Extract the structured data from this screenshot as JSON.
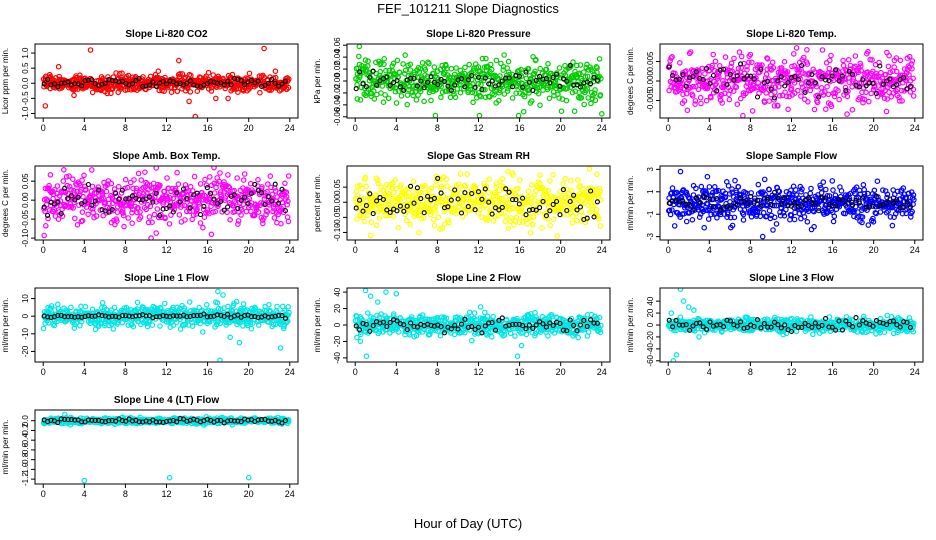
{
  "figure": {
    "title": "FEF_101211  Slope Diagnostics",
    "xlabel": "Hour of Day (UTC)"
  },
  "chart_data": [
    {
      "type": "scatter",
      "title": "Slope Li-820 CO2",
      "ylabel": "Licor ppm per min.",
      "xlim": [
        -0.8,
        24.8
      ],
      "ylim": [
        -1.15,
        1.3
      ],
      "xticks": [
        0,
        4,
        8,
        12,
        16,
        20,
        24
      ],
      "yticks": [
        -1.0,
        -0.5,
        0.0,
        0.5,
        1.0
      ],
      "ytick_labels": [
        "-1.0",
        "-0.5",
        "0.0",
        "0.5",
        "1.0"
      ],
      "spread": 0.13,
      "raw_color": "#ff0000",
      "black_amp": 0.07,
      "outliers": [
        [
          0.2,
          -0.75
        ],
        [
          1.5,
          0.55
        ],
        [
          3.0,
          -0.4
        ],
        [
          4.6,
          1.1
        ],
        [
          7.3,
          -0.3
        ],
        [
          10.0,
          -0.2
        ],
        [
          11.2,
          0.4
        ],
        [
          13.2,
          0.75
        ],
        [
          14.2,
          -0.6
        ],
        [
          14.8,
          -1.1
        ],
        [
          16.1,
          0.35
        ],
        [
          16.8,
          -0.5
        ],
        [
          18.0,
          -0.5
        ],
        [
          21.5,
          1.15
        ],
        [
          22.6,
          0.4
        ],
        [
          23.7,
          -0.2
        ]
      ]
    },
    {
      "type": "scatter",
      "title": "Slope Li-820 Pressure",
      "ylabel": "kPa per min.",
      "xlim": [
        -0.8,
        24.8
      ],
      "ylim": [
        -0.062,
        0.062
      ],
      "xticks": [
        0,
        4,
        8,
        12,
        16,
        20,
        24
      ],
      "yticks": [
        -0.06,
        -0.04,
        -0.02,
        0.0,
        0.02,
        0.04,
        0.06
      ],
      "ytick_labels": [
        "-0.06",
        "-0.04",
        "-0.02",
        "0.00",
        "0.02",
        "0.04",
        "0.06"
      ],
      "spread": 0.017,
      "raw_color": "#00cc00",
      "black_amp": 0.008,
      "outliers": [
        [
          0.4,
          0.058
        ],
        [
          0.2,
          -0.03
        ],
        [
          1.0,
          0.035
        ],
        [
          7.8,
          -0.058
        ],
        [
          12.1,
          -0.058
        ],
        [
          15.9,
          -0.058
        ],
        [
          24.0,
          -0.055
        ],
        [
          2.5,
          0.03
        ],
        [
          21.0,
          0.025
        ]
      ]
    },
    {
      "type": "scatter",
      "title": "Slope Li-820 Temp.",
      "ylabel": "degrees C per min.",
      "xlim": [
        -0.8,
        24.8
      ],
      "ylim": [
        -0.0095,
        0.0095
      ],
      "xticks": [
        0,
        4,
        8,
        12,
        16,
        20,
        24
      ],
      "yticks": [
        -0.005,
        0.0,
        0.005
      ],
      "ytick_labels": [
        "-0.005",
        "0.000",
        "0.005"
      ],
      "spread": 0.003,
      "raw_color": "#ff00ff",
      "black_amp": 0.002,
      "outliers": [
        [
          12.5,
          0.0085
        ],
        [
          13.5,
          0.008
        ],
        [
          17.4,
          -0.0085
        ],
        [
          8.0,
          0.0068
        ],
        [
          21.5,
          0.0065
        ]
      ]
    },
    {
      "type": "scatter",
      "title": "Slope Amb. Box Temp.",
      "ylabel": "degrees C per min.",
      "xlim": [
        -0.8,
        24.8
      ],
      "ylim": [
        -0.105,
        0.09
      ],
      "xticks": [
        0,
        4,
        8,
        12,
        16,
        20,
        24
      ],
      "yticks": [
        -0.1,
        -0.05,
        0.0,
        0.05
      ],
      "ytick_labels": [
        "-0.10",
        "-0.05",
        "0.00",
        "0.05"
      ],
      "spread": 0.032,
      "raw_color": "#ff00ff",
      "black_amp": 0.02,
      "outliers": [
        [
          10.5,
          -0.1
        ],
        [
          2.0,
          0.08
        ],
        [
          11.0,
          0.085
        ]
      ]
    },
    {
      "type": "scatter",
      "title": "Slope Gas Stream RH",
      "ylabel": "percent per min.",
      "xlim": [
        -0.8,
        24.8
      ],
      "ylim": [
        -0.125,
        0.12
      ],
      "xticks": [
        0,
        4,
        8,
        12,
        16,
        20,
        24
      ],
      "yticks": [
        -0.1,
        -0.05,
        0.0,
        0.05
      ],
      "ytick_labels": [
        "-0.10",
        "-0.05",
        "0.00",
        "0.05"
      ],
      "spread": 0.038,
      "raw_color": "#ffff00",
      "black_amp": 0.03,
      "outliers": [
        [
          22.8,
          0.11
        ],
        [
          1.5,
          -0.11
        ],
        [
          18.0,
          0.09
        ]
      ]
    },
    {
      "type": "scatter",
      "title": "Slope Sample Flow",
      "ylabel": "ml/min per min.",
      "xlim": [
        -0.8,
        24.8
      ],
      "ylim": [
        -3.3,
        3.3
      ],
      "xticks": [
        0,
        4,
        8,
        12,
        16,
        20,
        24
      ],
      "yticks": [
        -3,
        -1,
        1,
        3
      ],
      "ytick_labels": [
        "-3",
        "-1",
        "1",
        "3"
      ],
      "spread": 0.8,
      "raw_color": "#0000ff",
      "black_amp": 0.35,
      "outliers": [
        [
          1.2,
          2.8
        ],
        [
          9.2,
          -3.0
        ],
        [
          6.5,
          2.0
        ],
        [
          3.5,
          -2.2
        ]
      ]
    },
    {
      "type": "scatter",
      "title": "Slope Line 1 Flow",
      "ylabel": "ml/min per min.",
      "xlim": [
        -0.8,
        24.8
      ],
      "ylim": [
        -26,
        16
      ],
      "xticks": [
        0,
        4,
        8,
        12,
        16,
        20,
        24
      ],
      "yticks": [
        -20,
        -10,
        0,
        10
      ],
      "ytick_labels": [
        "-20",
        "-10",
        "0",
        "10"
      ],
      "spread": 3.0,
      "raw_color": "#00e5e5",
      "black_amp": 0.5,
      "outliers": [
        [
          17.0,
          14
        ],
        [
          17.5,
          12
        ],
        [
          17.2,
          -25
        ],
        [
          18.2,
          -12
        ],
        [
          19.1,
          -15
        ],
        [
          23.1,
          -18
        ],
        [
          16.8,
          8
        ],
        [
          18.5,
          6
        ],
        [
          17.8,
          -5
        ],
        [
          19.5,
          7
        ]
      ]
    },
    {
      "type": "scatter",
      "title": "Slope Line 2 Flow",
      "ylabel": "ml/min per min.",
      "xlim": [
        -0.8,
        24.8
      ],
      "ylim": [
        -45,
        45
      ],
      "xticks": [
        0,
        4,
        8,
        12,
        16,
        20,
        24
      ],
      "yticks": [
        -40,
        -20,
        0,
        20,
        40
      ],
      "ytick_labels": [
        "-40",
        "-20",
        "0",
        "20",
        "40"
      ],
      "spread": 6,
      "raw_color": "#00e5e5",
      "black_amp": 4,
      "outliers": [
        [
          1.0,
          42
        ],
        [
          1.5,
          35
        ],
        [
          3.0,
          40
        ],
        [
          4.0,
          38
        ],
        [
          0.5,
          -20
        ],
        [
          1.1,
          -38
        ],
        [
          15.8,
          -38
        ],
        [
          16.2,
          -25
        ],
        [
          17.5,
          15
        ],
        [
          12.2,
          22
        ],
        [
          2.2,
          28
        ]
      ]
    },
    {
      "type": "scatter",
      "title": "Slope Line 3 Flow",
      "ylabel": "ml/min per min.",
      "xlim": [
        -0.8,
        24.8
      ],
      "ylim": [
        -62,
        62
      ],
      "xticks": [
        0,
        4,
        8,
        12,
        16,
        20,
        24
      ],
      "yticks": [
        -60,
        -40,
        -20,
        0,
        20,
        40
      ],
      "ytick_labels": [
        "-60",
        "-40",
        "-20",
        "0",
        "20",
        "40"
      ],
      "spread": 6,
      "raw_color": "#00e5e5",
      "black_amp": 6,
      "outliers": [
        [
          0.5,
          -60
        ],
        [
          0.8,
          -50
        ],
        [
          1.2,
          60
        ],
        [
          1.5,
          40
        ],
        [
          2.0,
          30
        ],
        [
          2.5,
          25
        ],
        [
          0.3,
          20
        ],
        [
          3.0,
          -20
        ]
      ]
    },
    {
      "type": "scatter",
      "title": "Slope Line 4 (LT) Flow",
      "ylabel": "ml/min per min.",
      "xlim": [
        -0.8,
        24.8
      ],
      "ylim": [
        -1.3,
        0.22
      ],
      "xticks": [
        0,
        4,
        8,
        12,
        16,
        20,
        24
      ],
      "yticks": [
        -1.2,
        -1.0,
        -0.8,
        -0.6,
        -0.4,
        -0.2,
        0.0
      ],
      "ytick_labels": [
        "-1.2",
        "-1.0",
        "-0.8",
        "-0.6",
        "-0.4",
        "-0.2",
        "0.0"
      ],
      "spread": 0.03,
      "raw_color": "#00e5e5",
      "black_amp": 0.02,
      "outliers": [
        [
          4.0,
          -1.23
        ],
        [
          12.3,
          -1.17
        ],
        [
          20.0,
          -1.17
        ],
        [
          2.1,
          0.13
        ]
      ]
    }
  ]
}
